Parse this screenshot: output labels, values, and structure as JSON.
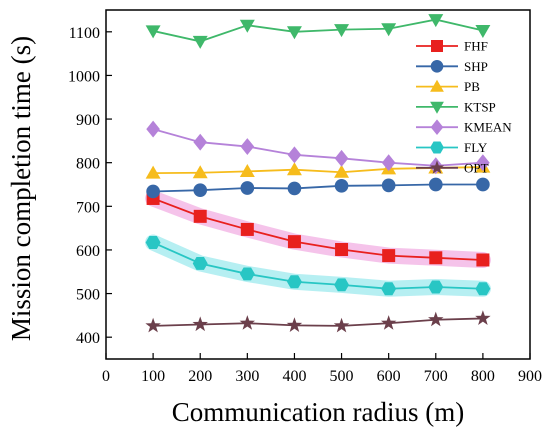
{
  "chart_data": {
    "type": "line",
    "title": "",
    "xlabel": "Communication radius (m)",
    "ylabel": "Mission completion time (s)",
    "xlim": [
      0,
      900
    ],
    "ylim": [
      350,
      1150
    ],
    "x_ticks": [
      0,
      100,
      200,
      300,
      400,
      500,
      600,
      700,
      800,
      900
    ],
    "y_ticks": [
      400,
      500,
      600,
      700,
      800,
      900,
      1000,
      1100
    ],
    "grid": false,
    "legend_position": "top-right",
    "x": [
      100,
      200,
      300,
      400,
      500,
      600,
      700,
      800
    ],
    "series": [
      {
        "name": "FHF",
        "color": "#e8201e",
        "marker": "square",
        "values": [
          718,
          677,
          647,
          619,
          601,
          587,
          582,
          577
        ]
      },
      {
        "name": "SHP",
        "color": "#3767a7",
        "marker": "circle",
        "values": [
          734,
          737,
          742,
          741,
          747,
          748,
          750,
          750
        ]
      },
      {
        "name": "PB",
        "color": "#f6bc1c",
        "marker": "triangle-up",
        "values": [
          776,
          777,
          780,
          784,
          778,
          786,
          788,
          790
        ]
      },
      {
        "name": "KTSP",
        "color": "#3fb86a",
        "marker": "triangle-down",
        "values": [
          1102,
          1078,
          1115,
          1100,
          1105,
          1107,
          1128,
          1103
        ]
      },
      {
        "name": "KMEAN",
        "color": "#b582d9",
        "marker": "diamond",
        "values": [
          877,
          847,
          837,
          818,
          810,
          800,
          793,
          800
        ]
      },
      {
        "name": "FLY",
        "color": "#28c6c4",
        "marker": "hexagon",
        "values": [
          617,
          569,
          545,
          527,
          520,
          511,
          515,
          511
        ]
      },
      {
        "name": "OPT",
        "color": "#6b3f4b",
        "marker": "star",
        "values": [
          426,
          429,
          432,
          427,
          426,
          432,
          440,
          443
        ]
      }
    ],
    "highlight_colors": {
      "FHF": "#f3b8e6",
      "FLY": "#a9ecf0"
    }
  }
}
